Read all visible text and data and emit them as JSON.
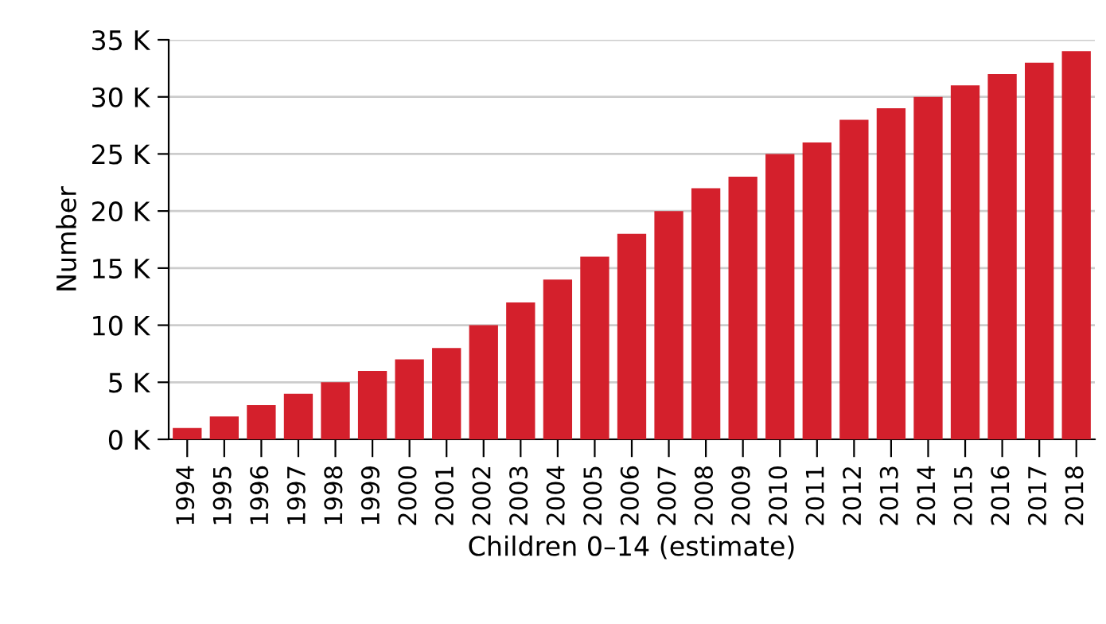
{
  "chart_data": {
    "type": "bar",
    "xlabel": "Children 0–14 (estimate)",
    "ylabel": "Number",
    "categories": [
      "1994",
      "1995",
      "1996",
      "1997",
      "1998",
      "1999",
      "2000",
      "2001",
      "2002",
      "2003",
      "2004",
      "2005",
      "2006",
      "2007",
      "2008",
      "2009",
      "2010",
      "2011",
      "2012",
      "2013",
      "2014",
      "2015",
      "2016",
      "2017",
      "2018"
    ],
    "values": [
      1000,
      2000,
      3000,
      4000,
      5000,
      6000,
      7000,
      8000,
      10000,
      12000,
      14000,
      16000,
      18000,
      20000,
      22000,
      23000,
      25000,
      26000,
      28000,
      29000,
      30000,
      31000,
      32000,
      33000,
      34000
    ],
    "color": "#d4202c",
    "ylim": [
      0,
      35000
    ],
    "yticks": [
      {
        "value": 0,
        "label": "0 K"
      },
      {
        "value": 5000,
        "label": "5 K"
      },
      {
        "value": 10000,
        "label": "10 K"
      },
      {
        "value": 15000,
        "label": "15 K"
      },
      {
        "value": 20000,
        "label": "20 K"
      },
      {
        "value": 25000,
        "label": "25 K"
      },
      {
        "value": 30000,
        "label": "30 K"
      },
      {
        "value": 35000,
        "label": "35 K"
      }
    ],
    "grid": "y"
  }
}
